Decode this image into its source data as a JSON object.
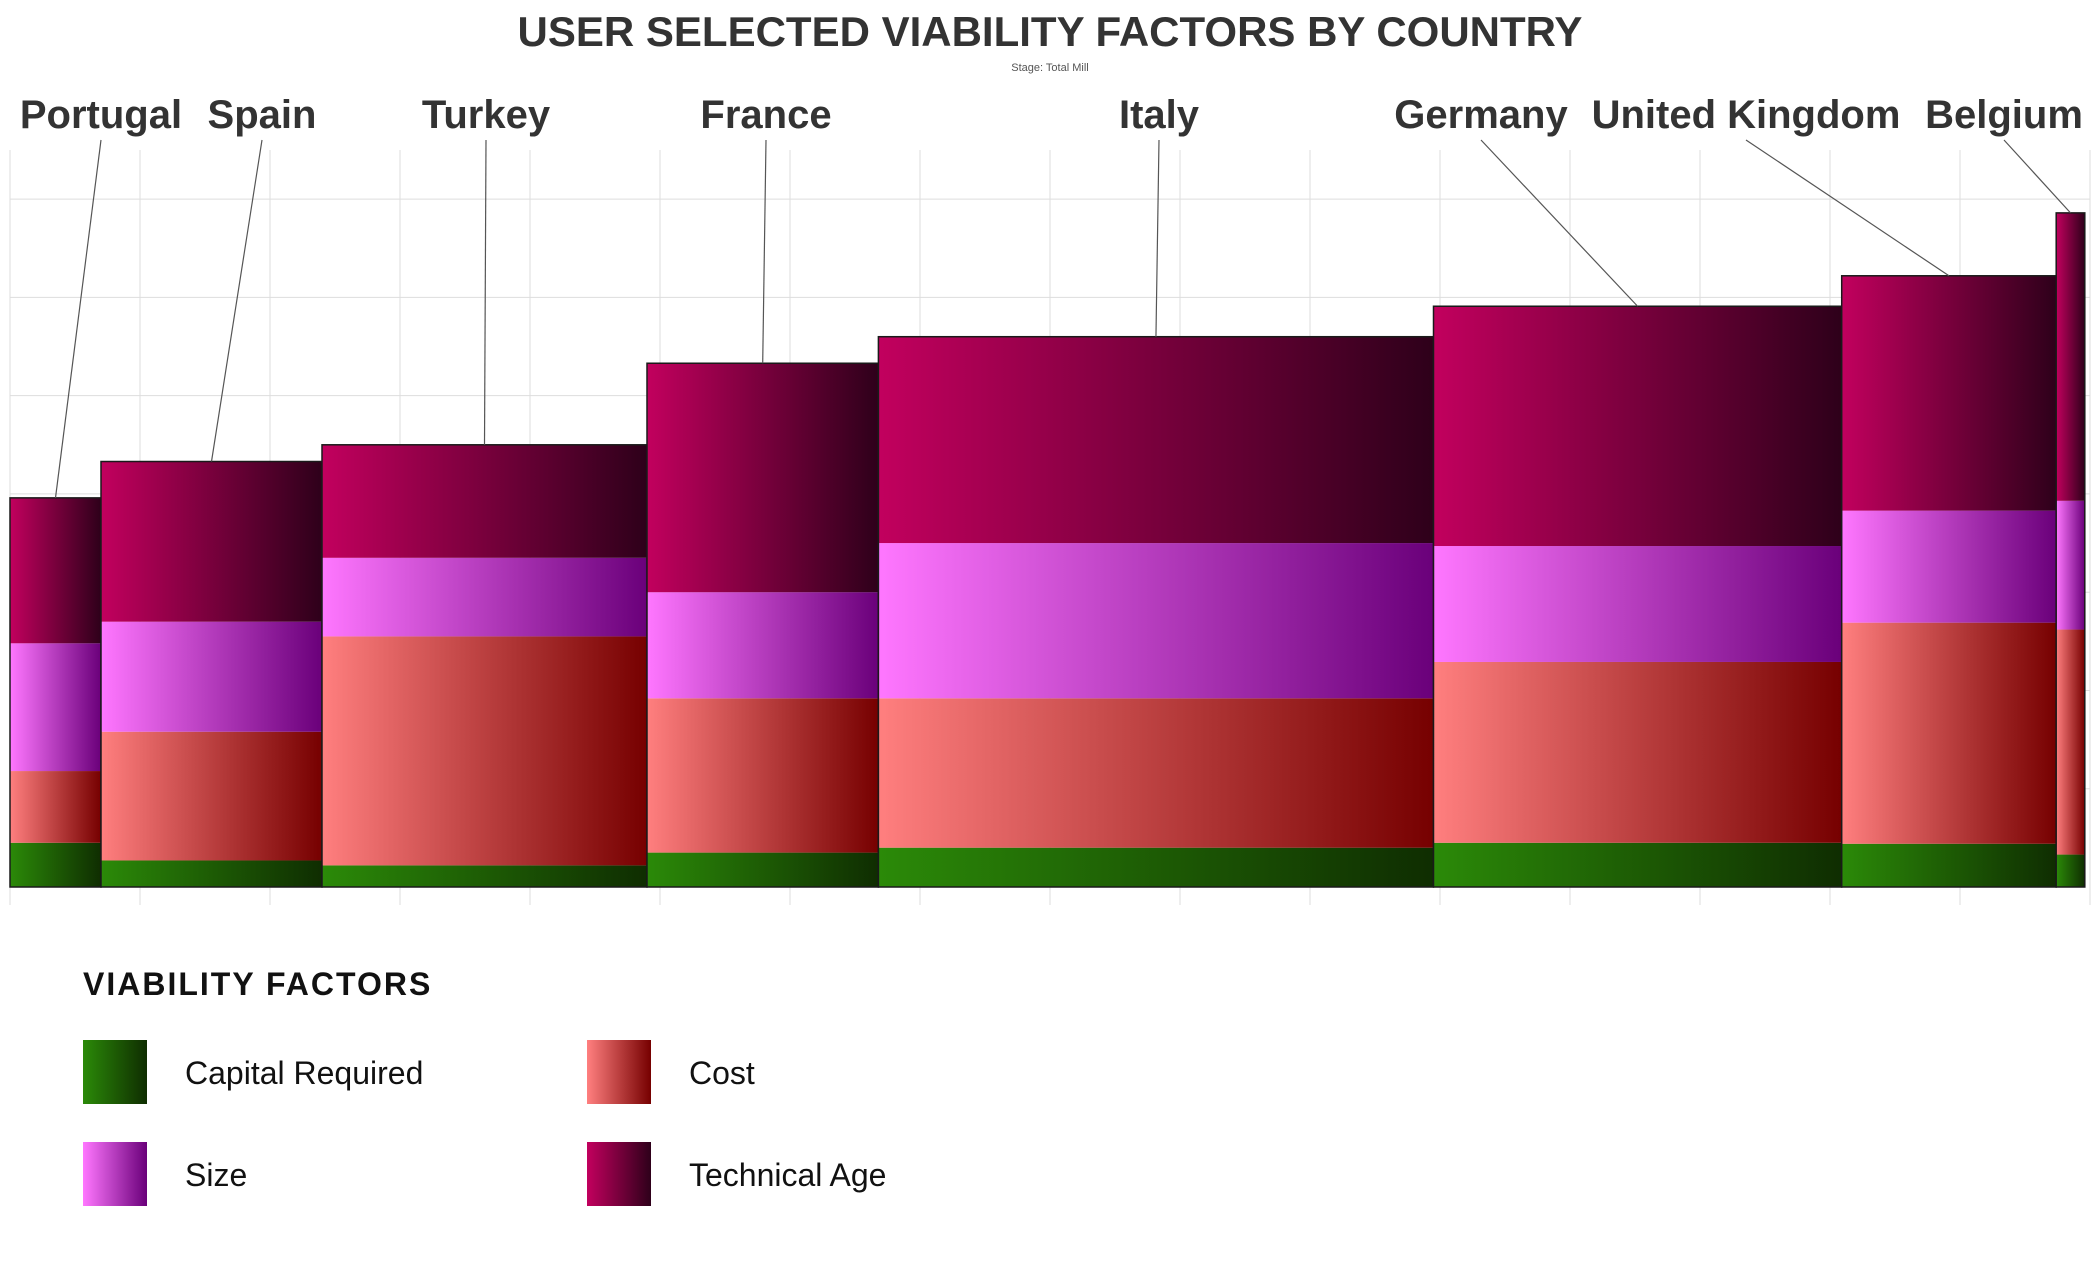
{
  "chart_data": {
    "type": "bar",
    "variant": "stacked variable-width (marimekko)",
    "title": "USER SELECTED VIABILITY FACTORS BY COUNTRY",
    "subtitle": "Stage: Total Mill",
    "xlabel": "",
    "ylabel": "",
    "ylim": [
      0,
      7.5
    ],
    "xlim": [
      0,
      16
    ],
    "grid": true,
    "legend_position": "bottom-left",
    "legend_title": "VIABILITY FACTORS",
    "categories": [
      "Portugal",
      "Spain",
      "Turkey",
      "France",
      "Italy",
      "Germany",
      "United Kingdom",
      "Belgium"
    ],
    "widths": [
      0.7,
      1.7,
      2.5,
      1.78,
      4.27,
      3.14,
      1.65,
      0.22
    ],
    "series": [
      {
        "name": "Capital Required",
        "values": [
          0.45,
          0.27,
          0.22,
          0.35,
          0.4,
          0.45,
          0.44,
          0.33
        ],
        "colors": [
          "#2b8a08",
          "#0f2d01"
        ]
      },
      {
        "name": "Cost",
        "values": [
          0.73,
          1.31,
          2.33,
          1.57,
          1.52,
          1.84,
          2.25,
          2.29
        ],
        "colors": [
          "#ff7f7f",
          "#760000"
        ]
      },
      {
        "name": "Size",
        "values": [
          1.3,
          1.12,
          0.8,
          1.08,
          1.58,
          1.18,
          1.14,
          1.31
        ],
        "colors": [
          "#ff77ff",
          "#6a007a"
        ]
      },
      {
        "name": "Technical Age",
        "values": [
          1.48,
          1.63,
          1.15,
          2.33,
          2.1,
          2.44,
          2.39,
          2.93
        ],
        "colors": [
          "#c2005e",
          "#2e001a"
        ]
      }
    ]
  }
}
